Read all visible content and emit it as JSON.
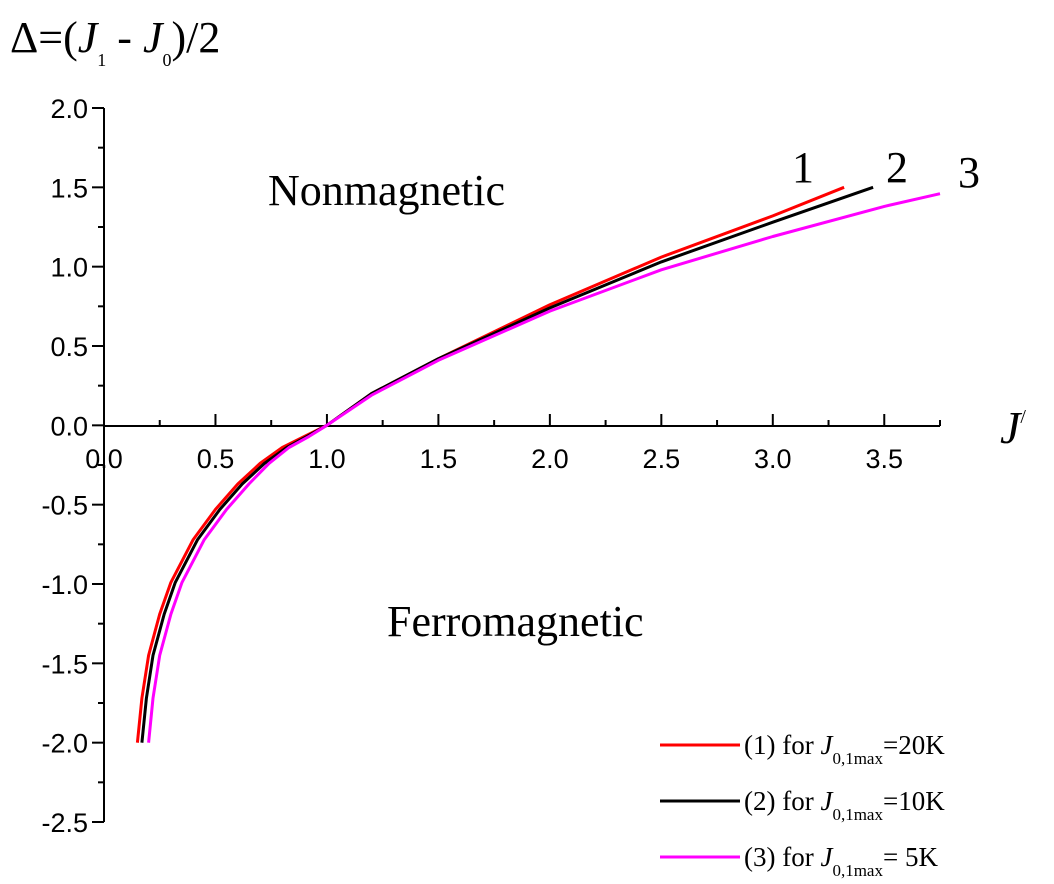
{
  "chart_data": {
    "type": "line",
    "ylabel_parts": {
      "prefix": "Δ=(",
      "j1": "J",
      "sub1": "1",
      "minus": " - ",
      "j0": "J",
      "sub0": "0",
      "suffix": ")/2"
    },
    "xlabel_parts": {
      "main": "J",
      "sup": "/"
    },
    "xlim": [
      0.0,
      3.75
    ],
    "ylim": [
      -2.5,
      2.0
    ],
    "x_ticks": [
      "0.0",
      "0.5",
      "1.0",
      "1.5",
      "2.0",
      "2.5",
      "3.0",
      "3.5"
    ],
    "y_ticks": [
      "2.0",
      "1.5",
      "1.0",
      "0.5",
      "0.0",
      "-0.5",
      "-1.0",
      "-1.5",
      "-2.0",
      "-2.5"
    ],
    "region_labels": {
      "upper": "Nonmagnetic",
      "lower": "Ferromagnetic"
    },
    "legend_position": "bottom-right",
    "series": [
      {
        "id": "1",
        "color": "#ff0000",
        "legend": {
          "prefix": "(1) for ",
          "J": "J",
          "sub": "0,1max",
          "suffix": "=20K"
        },
        "points": [
          [
            0.15,
            -2.0
          ],
          [
            0.17,
            -1.72
          ],
          [
            0.2,
            -1.45
          ],
          [
            0.25,
            -1.19
          ],
          [
            0.3,
            -0.99
          ],
          [
            0.4,
            -0.72
          ],
          [
            0.5,
            -0.53
          ],
          [
            0.6,
            -0.37
          ],
          [
            0.7,
            -0.24
          ],
          [
            0.8,
            -0.14
          ],
          [
            0.9,
            -0.07
          ],
          [
            1.0,
            0.0
          ],
          [
            1.2,
            0.2
          ],
          [
            1.5,
            0.42
          ],
          [
            2.0,
            0.76
          ],
          [
            2.5,
            1.06
          ],
          [
            3.0,
            1.32
          ],
          [
            3.32,
            1.5
          ]
        ]
      },
      {
        "id": "2",
        "color": "#000000",
        "legend": {
          "prefix": "(2) for ",
          "J": "J",
          "sub": "0,1max",
          "suffix": "=10K"
        },
        "points": [
          [
            0.17,
            -2.0
          ],
          [
            0.19,
            -1.72
          ],
          [
            0.22,
            -1.45
          ],
          [
            0.27,
            -1.19
          ],
          [
            0.32,
            -0.99
          ],
          [
            0.42,
            -0.72
          ],
          [
            0.52,
            -0.53
          ],
          [
            0.62,
            -0.37
          ],
          [
            0.72,
            -0.24
          ],
          [
            0.82,
            -0.14
          ],
          [
            0.91,
            -0.07
          ],
          [
            1.0,
            0.0
          ],
          [
            1.2,
            0.2
          ],
          [
            1.5,
            0.42
          ],
          [
            2.0,
            0.74
          ],
          [
            2.5,
            1.03
          ],
          [
            3.0,
            1.28
          ],
          [
            3.45,
            1.5
          ]
        ]
      },
      {
        "id": "3",
        "color": "#ff00ff",
        "legend": {
          "prefix": "(3) for ",
          "J": "J",
          "sub": "0,1max",
          "suffix": "= 5K"
        },
        "points": [
          [
            0.2,
            -2.0
          ],
          [
            0.22,
            -1.72
          ],
          [
            0.25,
            -1.45
          ],
          [
            0.3,
            -1.19
          ],
          [
            0.35,
            -0.99
          ],
          [
            0.45,
            -0.72
          ],
          [
            0.55,
            -0.53
          ],
          [
            0.65,
            -0.37
          ],
          [
            0.74,
            -0.24
          ],
          [
            0.83,
            -0.14
          ],
          [
            0.92,
            -0.07
          ],
          [
            1.0,
            0.0
          ],
          [
            1.2,
            0.19
          ],
          [
            1.5,
            0.41
          ],
          [
            2.0,
            0.72
          ],
          [
            2.5,
            0.98
          ],
          [
            3.0,
            1.19
          ],
          [
            3.5,
            1.38
          ],
          [
            3.75,
            1.46
          ]
        ]
      }
    ]
  }
}
